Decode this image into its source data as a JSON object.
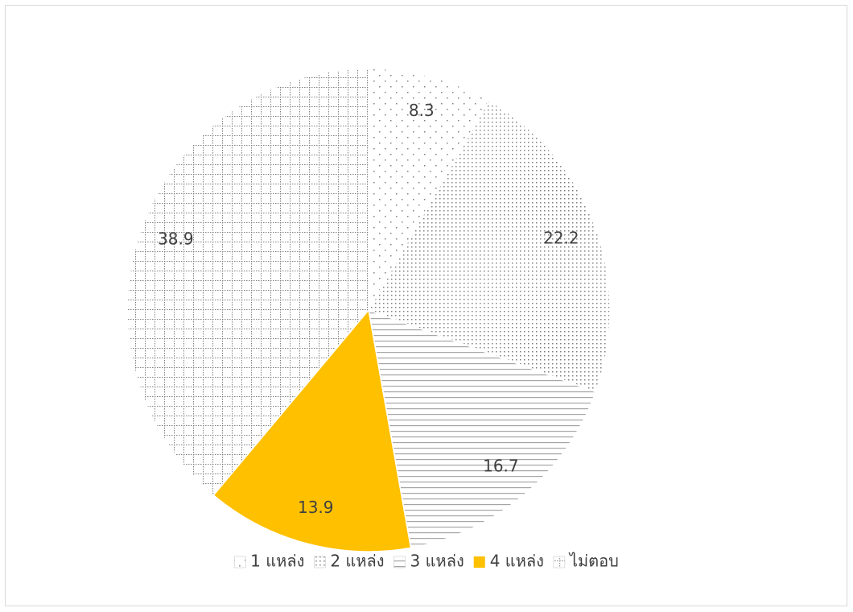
{
  "chart_data": {
    "type": "pie",
    "categories": [
      "1 แหล่ง",
      "2 แหล่ง",
      "3 แหล่ง",
      "4 แหล่ง",
      "ไม่ตอบ"
    ],
    "values": [
      8.3,
      22.2,
      16.7,
      13.9,
      38.9
    ],
    "colors": [
      "#7f7f7f",
      "#7f7f7f",
      "#a6a6a6",
      "#ffc000",
      "#7f7f7f"
    ],
    "patterns": [
      "sparse-dots",
      "dense-dots",
      "horizontal-lines",
      "solid",
      "grid"
    ],
    "legend": "bottom"
  }
}
